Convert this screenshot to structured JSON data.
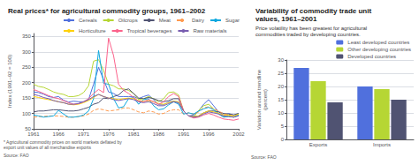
{
  "chart_data": [
    {
      "type": "line",
      "title": "Real prices* for agricultural commodity groups, 1961–2002",
      "ylabel": "Index (1991–92 = 100)",
      "x": [
        1961,
        1962,
        1963,
        1964,
        1965,
        1966,
        1967,
        1968,
        1969,
        1970,
        1971,
        1972,
        1973,
        1974,
        1975,
        1976,
        1977,
        1978,
        1979,
        1980,
        1981,
        1982,
        1983,
        1984,
        1985,
        1986,
        1987,
        1988,
        1989,
        1990,
        1991,
        1992,
        1993,
        1994,
        1995,
        1996,
        1997,
        1998,
        1999,
        2000,
        2001,
        2002
      ],
      "xlim": [
        1961,
        2002
      ],
      "xticks": [
        1961,
        1966,
        1971,
        1976,
        1981,
        1986,
        1991,
        1996,
        2002
      ],
      "ylim": [
        50,
        360
      ],
      "yticks": [
        50,
        100,
        150,
        200,
        250,
        300,
        350
      ],
      "grid": true,
      "legend": "upper right",
      "series": [
        {
          "name": "Cereals",
          "values": [
            170,
            168,
            163,
            155,
            152,
            155,
            143,
            137,
            140,
            138,
            138,
            145,
            195,
            250,
            210,
            170,
            165,
            155,
            155,
            155,
            155,
            148,
            155,
            160,
            145,
            128,
            128,
            138,
            140,
            135,
            108,
            92,
            95,
            108,
            130,
            145,
            125,
            105,
            95,
            100,
            95,
            100
          ]
        },
        {
          "name": "Oilcrops",
          "values": [
            195,
            188,
            185,
            178,
            170,
            165,
            162,
            155,
            155,
            158,
            168,
            190,
            270,
            275,
            240,
            195,
            190,
            180,
            180,
            175,
            165,
            145,
            148,
            155,
            148,
            138,
            148,
            168,
            170,
            160,
            108,
            92,
            88,
            110,
            125,
            130,
            115,
            100,
            88,
            92,
            88,
            95
          ]
        },
        {
          "name": "Meat",
          "values": [
            105,
            108,
            108,
            110,
            112,
            112,
            110,
            108,
            108,
            110,
            115,
            120,
            130,
            135,
            150,
            148,
            155,
            160,
            175,
            180,
            165,
            150,
            148,
            152,
            148,
            142,
            138,
            142,
            148,
            148,
            108,
            92,
            90,
            92,
            102,
            108,
            108,
            105,
            100,
            98,
            95,
            100
          ]
        },
        {
          "name": "Dairy",
          "line_style": "dashed",
          "values": [
            88,
            90,
            90,
            92,
            92,
            92,
            90,
            88,
            88,
            90,
            92,
            98,
            110,
            115,
            112,
            108,
            110,
            112,
            118,
            118,
            112,
            105,
            102,
            108,
            105,
            98,
            100,
            108,
            112,
            112,
            98,
            102,
            98,
            105,
            118,
            122,
            115,
            108,
            98,
            95,
            92,
            95
          ]
        },
        {
          "name": "Sugar",
          "values": [
            95,
            92,
            88,
            90,
            92,
            110,
            98,
            88,
            88,
            90,
            95,
            108,
            148,
            305,
            198,
            195,
            148,
            118,
            122,
            148,
            152,
            130,
            145,
            148,
            125,
            112,
            115,
            128,
            138,
            130,
            98,
            102,
            98,
            108,
            115,
            120,
            112,
            98,
            88,
            90,
            88,
            95
          ]
        },
        {
          "name": "Horticulture",
          "values": [
            155,
            152,
            148,
            145,
            142,
            138,
            135,
            130,
            128,
            130,
            135,
            142,
            152,
            162,
            155,
            150,
            148,
            145,
            148,
            150,
            148,
            142,
            140,
            142,
            138,
            132,
            130,
            135,
            140,
            138,
            108,
            92,
            90,
            92,
            102,
            108,
            105,
            100,
            95,
            95,
            92,
            98
          ]
        },
        {
          "name": "Tropical beverages",
          "values": [
            178,
            172,
            165,
            158,
            152,
            148,
            142,
            135,
            130,
            132,
            138,
            148,
            165,
            178,
            168,
            345,
            288,
            195,
            175,
            165,
            152,
            140,
            138,
            145,
            138,
            130,
            138,
            155,
            165,
            155,
            108,
            92,
            85,
            88,
            95,
            100,
            95,
            88,
            82,
            80,
            78,
            82
          ]
        },
        {
          "name": "Raw materials",
          "values": [
            162,
            158,
            152,
            148,
            142,
            138,
            135,
            130,
            130,
            132,
            138,
            145,
            155,
            162,
            155,
            150,
            145,
            142,
            145,
            148,
            145,
            138,
            135,
            138,
            132,
            125,
            125,
            132,
            138,
            135,
            108,
            92,
            88,
            90,
            98,
            105,
            102,
            98,
            92,
            90,
            88,
            92
          ]
        }
      ],
      "annotations": [
        "* Agricultural commodity prices on world markets deflated by\nexport unit values of all merchandise exports",
        "Source: FAO"
      ]
    },
    {
      "type": "bar",
      "title": "Variability of commodity trade unit\nvalues, 1961–2001",
      "subtitle": "Price volatility has been greatest for agricultural\ncommodities traded by developing countries.",
      "ylabel": "Variation around trendline\n(percent)",
      "categories": [
        "Exports",
        "Imports"
      ],
      "series": [
        {
          "name": "Least developed countries",
          "values": [
            27,
            20
          ]
        },
        {
          "name": "Other developing countries",
          "values": [
            22,
            19
          ]
        },
        {
          "name": "Developed countries",
          "values": [
            14,
            15
          ]
        }
      ],
      "ylim": [
        0,
        30
      ],
      "yticks": [
        0,
        5,
        10,
        15,
        20,
        25,
        30
      ],
      "grid": true,
      "legend": "upper right",
      "annotations": [
        "Source: FAO"
      ]
    }
  ]
}
